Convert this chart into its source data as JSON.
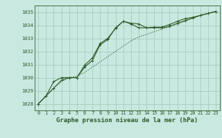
{
  "title": "Graphe pression niveau de la mer (hPa)",
  "background_color": "#c8e8e0",
  "grid_color": "#a0c8b8",
  "line_color": "#2d5a27",
  "xlim": [
    -0.5,
    23.5
  ],
  "ylim": [
    1027.5,
    1035.5
  ],
  "yticks": [
    1028,
    1029,
    1030,
    1031,
    1032,
    1033,
    1034,
    1035
  ],
  "xticks": [
    0,
    1,
    2,
    3,
    4,
    5,
    6,
    7,
    8,
    9,
    10,
    11,
    12,
    13,
    14,
    15,
    16,
    17,
    18,
    19,
    20,
    21,
    22,
    23
  ],
  "series1_x": [
    0,
    1,
    2,
    3,
    4,
    5,
    6,
    7,
    8,
    9,
    10,
    11,
    12,
    13,
    14,
    15,
    16,
    17,
    18,
    19,
    20,
    21,
    22,
    23
  ],
  "series1_y": [
    1028.0,
    1028.6,
    1029.2,
    1029.7,
    1030.0,
    1030.1,
    1030.4,
    1030.8,
    1031.2,
    1031.6,
    1032.0,
    1032.4,
    1032.8,
    1033.1,
    1033.3,
    1033.5,
    1033.7,
    1033.9,
    1034.1,
    1034.3,
    1034.55,
    1034.75,
    1034.9,
    1035.05
  ],
  "series2_x": [
    0,
    1,
    2,
    3,
    4,
    5,
    6,
    7,
    8,
    9,
    10,
    11,
    12,
    13,
    14,
    15,
    16,
    17,
    18,
    19,
    20,
    21,
    22,
    23
  ],
  "series2_y": [
    1028.0,
    1028.6,
    1029.2,
    1029.8,
    1030.0,
    1030.0,
    1030.8,
    1031.3,
    1032.5,
    1032.9,
    1033.8,
    1034.3,
    1034.15,
    1034.1,
    1033.8,
    1033.8,
    1033.8,
    1033.9,
    1034.15,
    1034.35,
    1034.55,
    1034.75,
    1034.9,
    1035.05
  ],
  "series3_x": [
    0,
    1,
    2,
    3,
    4,
    5,
    6,
    7,
    8,
    9,
    10,
    11,
    12,
    13,
    14,
    15,
    16,
    17,
    18,
    19,
    20,
    21,
    22,
    23
  ],
  "series3_y": [
    1028.0,
    1028.6,
    1029.7,
    1030.0,
    1030.0,
    1030.0,
    1030.95,
    1031.5,
    1032.6,
    1033.0,
    1033.75,
    1034.3,
    1034.1,
    1033.8,
    1033.8,
    1033.85,
    1033.85,
    1034.05,
    1034.3,
    1034.5,
    1034.6,
    1034.75,
    1034.9,
    1035.05
  ],
  "title_fontsize": 6.5,
  "tick_fontsize": 5.0,
  "linewidth": 0.8,
  "markersize": 2.5
}
